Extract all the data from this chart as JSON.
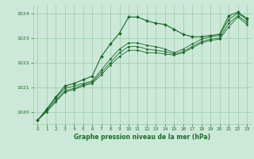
{
  "background_color": "#cce8d8",
  "grid_color": "#99ccaa",
  "line_color": "#1a6b2a",
  "xlabel": "Graphe pression niveau de la mer (hPa)",
  "xlim": [
    -0.5,
    23.5
  ],
  "ylim": [
    1019.5,
    1024.35
  ],
  "yticks": [
    1020,
    1021,
    1022,
    1023,
    1024
  ],
  "xticks": [
    0,
    1,
    2,
    3,
    4,
    5,
    6,
    7,
    8,
    9,
    10,
    11,
    12,
    13,
    14,
    15,
    16,
    17,
    18,
    19,
    20,
    21,
    22,
    23
  ],
  "series": [
    [
      1019.65,
      1020.1,
      1020.6,
      1021.05,
      1021.15,
      1021.3,
      1021.45,
      1022.25,
      1022.75,
      1023.2,
      1023.85,
      1023.85,
      1023.7,
      1023.6,
      1023.55,
      1023.35,
      1023.15,
      1023.05,
      1023.05,
      1023.1,
      1023.15,
      1023.9,
      1024.05,
      1023.8
    ],
    [
      1019.65,
      1020.1,
      1020.55,
      1020.95,
      1021.05,
      1021.15,
      1021.25,
      1021.7,
      1022.15,
      1022.55,
      1022.8,
      1022.8,
      1022.7,
      1022.65,
      1022.55,
      1022.4,
      1022.55,
      1022.75,
      1022.95,
      1023.05,
      1023.1,
      1023.75,
      1024.0,
      1023.75
    ],
    [
      1019.65,
      1020.05,
      1020.45,
      1020.85,
      1020.95,
      1021.1,
      1021.2,
      1021.6,
      1022.0,
      1022.4,
      1022.65,
      1022.65,
      1022.55,
      1022.5,
      1022.45,
      1022.35,
      1022.45,
      1022.65,
      1022.85,
      1022.95,
      1023.0,
      1023.6,
      1023.9,
      1023.65
    ],
    [
      1019.65,
      1020.0,
      1020.4,
      1020.8,
      1020.9,
      1021.05,
      1021.15,
      1021.5,
      1021.9,
      1022.25,
      1022.5,
      1022.5,
      1022.4,
      1022.4,
      1022.35,
      1022.3,
      1022.4,
      1022.6,
      1022.8,
      1022.9,
      1022.95,
      1023.45,
      1023.85,
      1023.55
    ]
  ]
}
